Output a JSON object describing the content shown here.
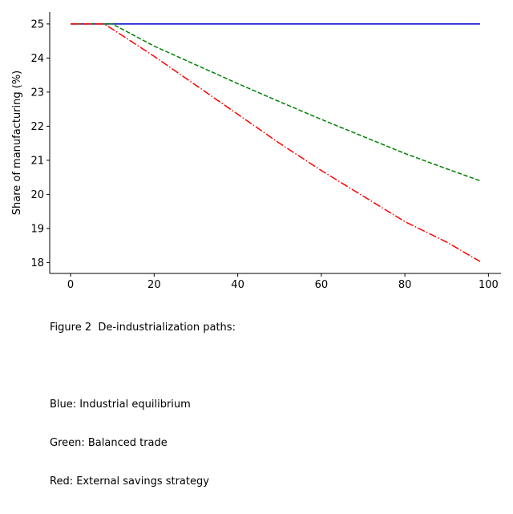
{
  "chart_data": {
    "type": "line",
    "title": "",
    "xlabel": "",
    "ylabel": "Share of manufacturing (%)",
    "xlim": [
      -5,
      103
    ],
    "ylim": [
      17.68,
      25.35
    ],
    "xticks": [
      0,
      20,
      40,
      60,
      80,
      100
    ],
    "yticks": [
      18,
      19,
      20,
      21,
      22,
      23,
      24,
      25
    ],
    "grid": false,
    "legend": "none",
    "series": [
      {
        "color": "#0000cc",
        "linestyle": "solid",
        "x": [
          0,
          98
        ],
        "y": [
          25.0,
          25.0
        ]
      },
      {
        "color": "#008000",
        "linestyle": "dashed",
        "x": [
          0,
          10,
          20,
          30,
          40,
          50,
          60,
          70,
          80,
          90,
          98
        ],
        "y": [
          25.0,
          25.0,
          24.35,
          23.8,
          23.25,
          22.72,
          22.2,
          21.7,
          21.2,
          20.75,
          20.4
        ]
      },
      {
        "color": "#ff0000",
        "linestyle": "dashdot",
        "x": [
          0,
          8,
          10,
          20,
          30,
          40,
          50,
          60,
          70,
          80,
          90,
          98
        ],
        "y": [
          25.0,
          25.0,
          24.85,
          24.05,
          23.2,
          22.35,
          21.5,
          20.7,
          19.95,
          19.2,
          18.6,
          18.03
        ]
      }
    ]
  },
  "caption": {
    "lines": [
      "Figure 2  De-industrialization paths:",
      "",
      "Blue: Industrial equilibrium",
      "Green: Balanced trade",
      "Red: External savings strategy"
    ]
  }
}
